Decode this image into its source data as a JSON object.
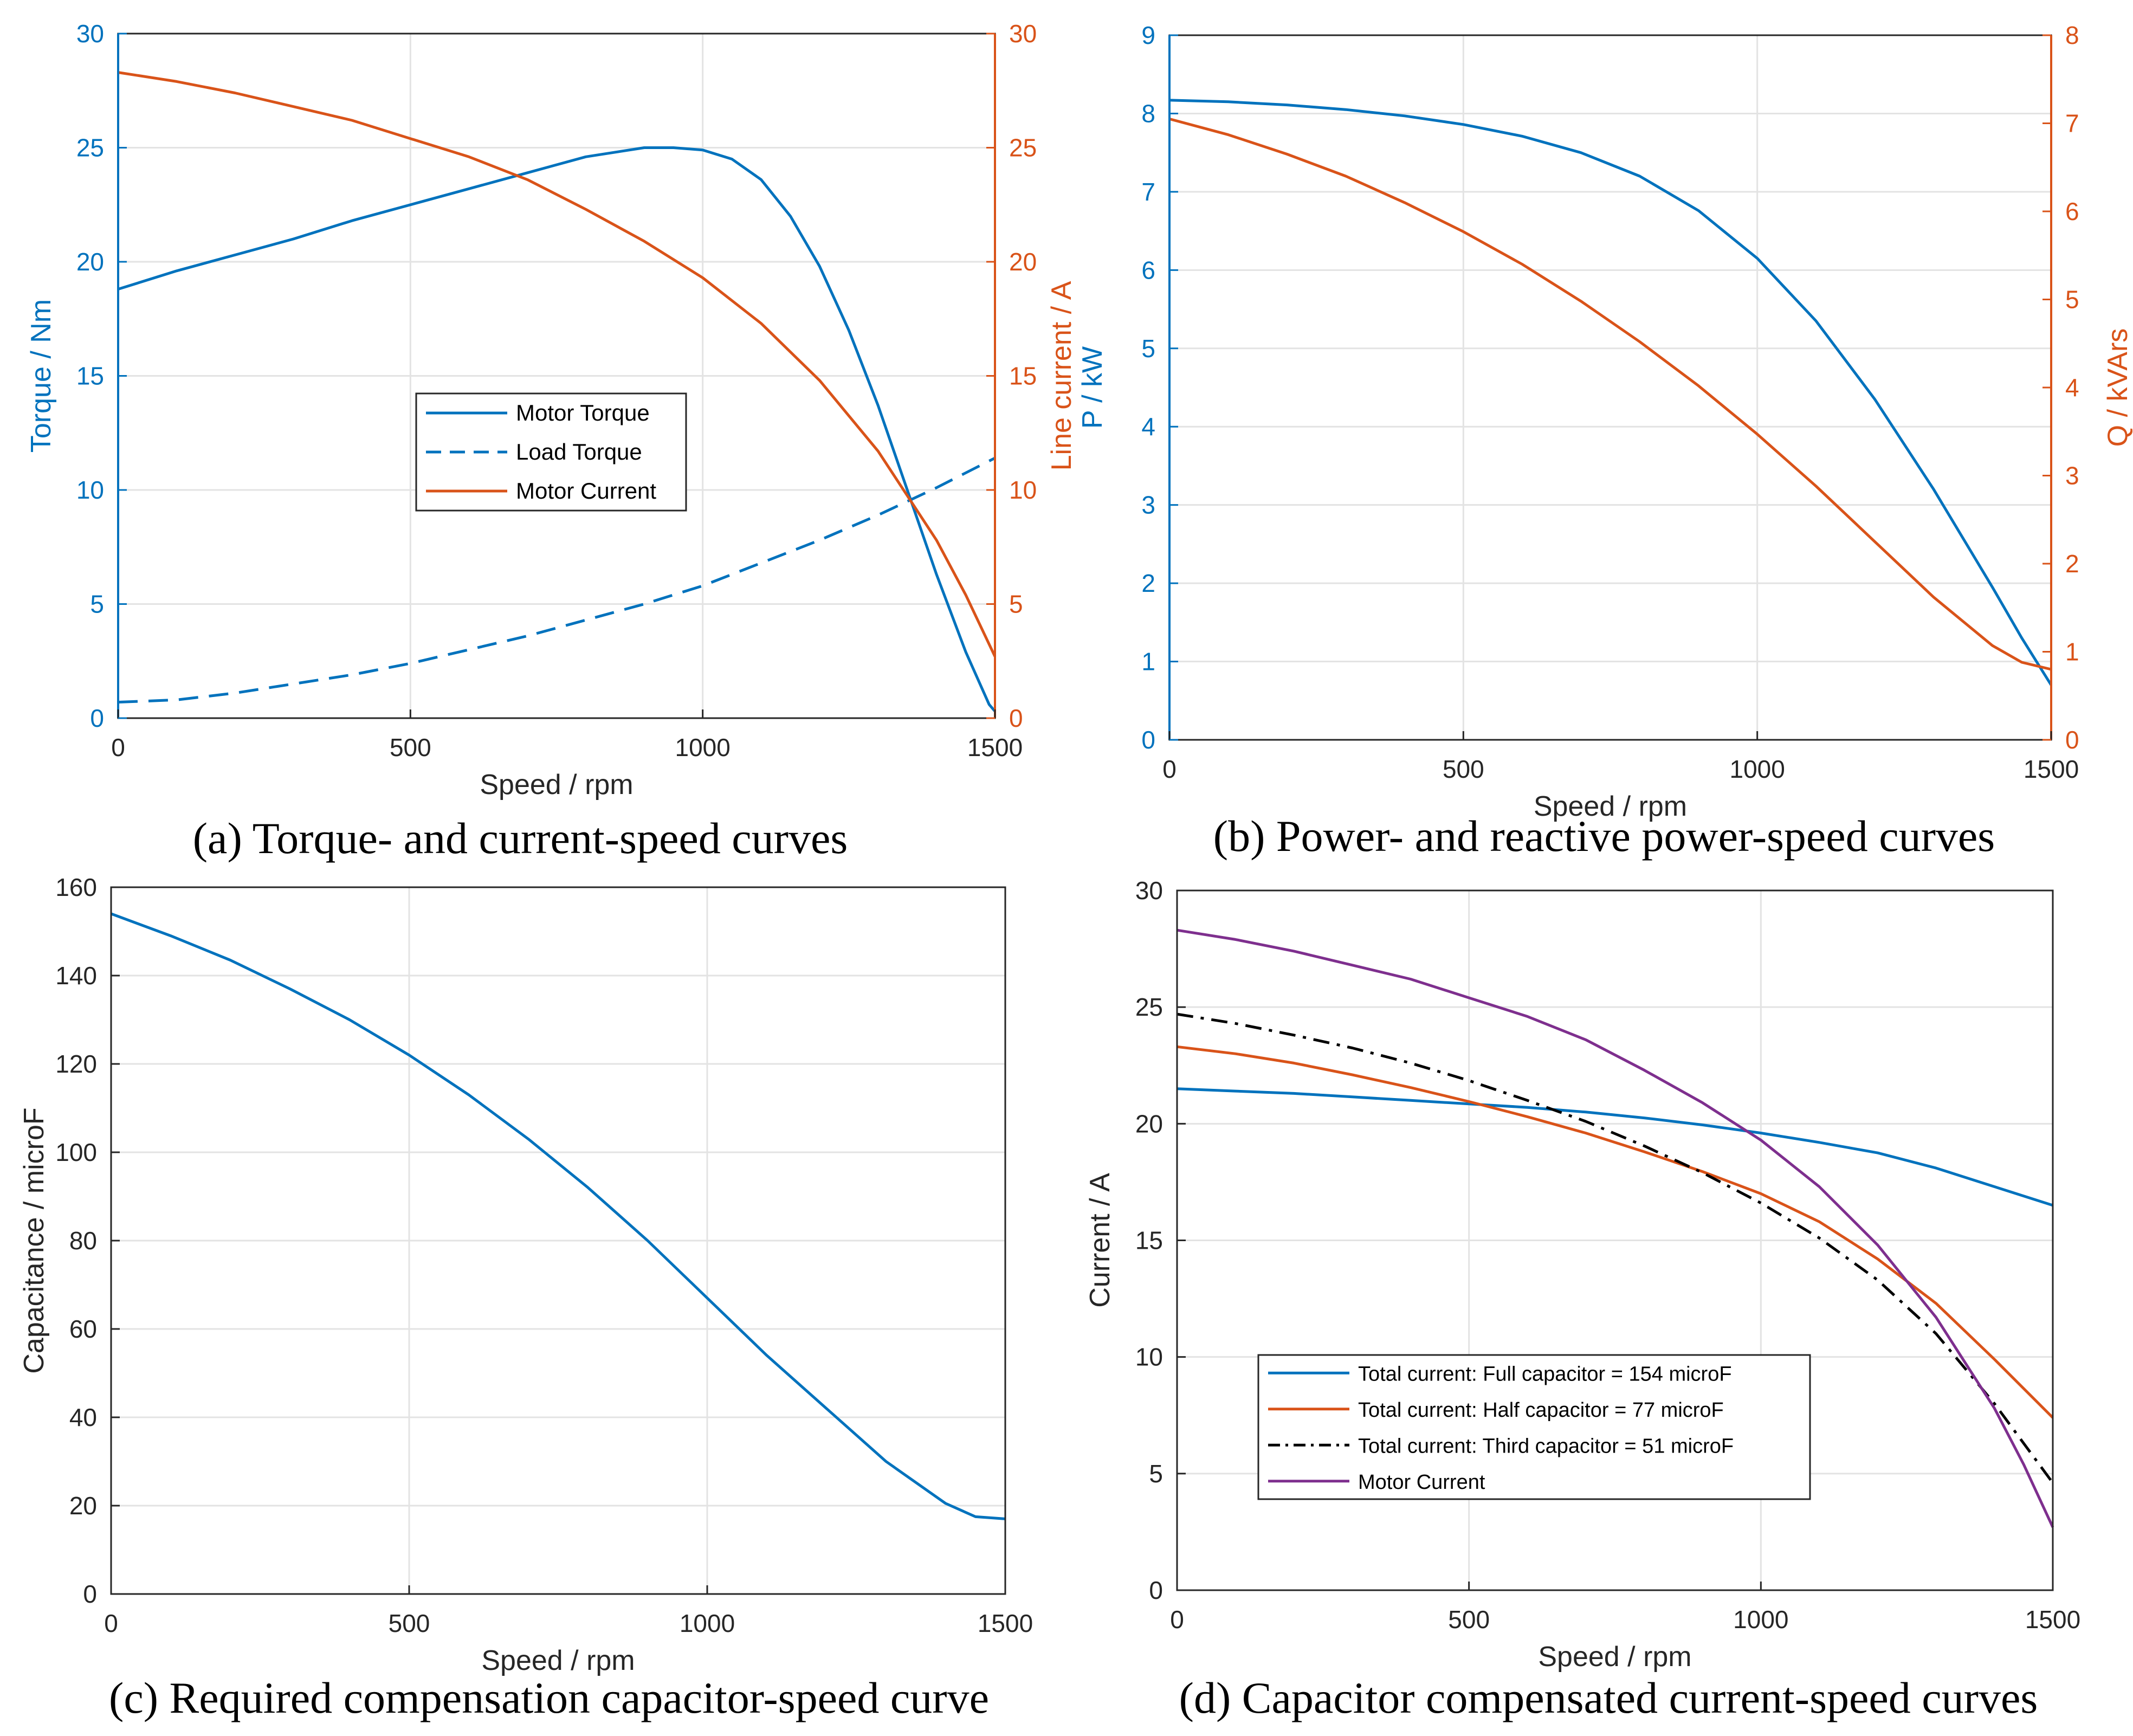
{
  "chart_data": [
    {
      "id": "a",
      "type": "line",
      "caption": "(a) Torque- and current-speed curves",
      "xlabel": "Speed / rpm",
      "xlim": [
        0,
        1500
      ],
      "xticks": [
        0,
        500,
        1000,
        1500
      ],
      "ylabel_left": "Torque / Nm",
      "ylim_left": [
        0,
        30
      ],
      "yticks_left": [
        0,
        5,
        10,
        15,
        20,
        25,
        30
      ],
      "ylabel_right": "Line current / A",
      "ylim_right": [
        0,
        30
      ],
      "yticks_right": [
        0,
        5,
        10,
        15,
        20,
        25,
        30
      ],
      "grid": true,
      "legend_position": "center",
      "series": [
        {
          "name": "Motor Torque",
          "axis": "left",
          "color": "#0072bd",
          "style": "solid",
          "x": [
            0,
            100,
            200,
            300,
            400,
            500,
            600,
            700,
            800,
            900,
            950,
            1000,
            1050,
            1100,
            1150,
            1200,
            1250,
            1300,
            1350,
            1400,
            1450,
            1490,
            1500
          ],
          "y": [
            18.8,
            19.6,
            20.3,
            21.0,
            21.8,
            22.5,
            23.2,
            23.9,
            24.6,
            25.0,
            25.0,
            24.9,
            24.5,
            23.6,
            22.0,
            19.8,
            17.0,
            13.7,
            10.0,
            6.3,
            2.9,
            0.6,
            0.3
          ]
        },
        {
          "name": "Load Torque",
          "axis": "left",
          "color": "#0072bd",
          "style": "dashed",
          "x": [
            0,
            100,
            200,
            300,
            400,
            500,
            600,
            700,
            800,
            900,
            1000,
            1100,
            1200,
            1300,
            1400,
            1500
          ],
          "y": [
            0.7,
            0.8,
            1.1,
            1.5,
            1.9,
            2.4,
            3.0,
            3.6,
            4.3,
            5.0,
            5.8,
            6.8,
            7.8,
            8.9,
            10.1,
            11.4
          ]
        },
        {
          "name": "Motor Current",
          "axis": "right",
          "color": "#d95319",
          "style": "solid",
          "x": [
            0,
            100,
            200,
            300,
            400,
            500,
            600,
            700,
            800,
            900,
            1000,
            1100,
            1200,
            1300,
            1400,
            1450,
            1500
          ],
          "y": [
            28.3,
            27.9,
            27.4,
            26.8,
            26.2,
            25.4,
            24.6,
            23.6,
            22.3,
            20.9,
            19.3,
            17.3,
            14.8,
            11.7,
            7.8,
            5.4,
            2.7
          ]
        }
      ]
    },
    {
      "id": "b",
      "type": "line",
      "caption": "(b) Power- and reactive power-speed curves",
      "xlabel": "Speed / rpm",
      "xlim": [
        0,
        1500
      ],
      "xticks": [
        0,
        500,
        1000,
        1500
      ],
      "ylabel_left": "P / kW",
      "ylim_left": [
        0,
        9
      ],
      "yticks_left": [
        0,
        1,
        2,
        3,
        4,
        5,
        6,
        7,
        8,
        9
      ],
      "ylabel_right": "Q / kVArs",
      "ylim_right": [
        0,
        8
      ],
      "yticks_right": [
        0,
        1,
        2,
        3,
        4,
        5,
        6,
        7,
        8
      ],
      "grid": true,
      "series": [
        {
          "name": "P",
          "axis": "left",
          "color": "#0072bd",
          "style": "solid",
          "x": [
            0,
            100,
            200,
            300,
            400,
            500,
            600,
            700,
            800,
            900,
            1000,
            1100,
            1200,
            1300,
            1400,
            1450,
            1500
          ],
          "y": [
            8.17,
            8.15,
            8.11,
            8.05,
            7.97,
            7.86,
            7.71,
            7.5,
            7.2,
            6.76,
            6.15,
            5.35,
            4.35,
            3.2,
            1.95,
            1.3,
            0.7
          ]
        },
        {
          "name": "Q",
          "axis": "right",
          "color": "#d95319",
          "style": "solid",
          "x": [
            0,
            100,
            200,
            300,
            400,
            500,
            600,
            700,
            800,
            900,
            1000,
            1100,
            1200,
            1300,
            1400,
            1450,
            1500
          ],
          "y": [
            7.05,
            6.87,
            6.65,
            6.4,
            6.1,
            5.77,
            5.4,
            4.98,
            4.52,
            4.02,
            3.47,
            2.88,
            2.25,
            1.62,
            1.07,
            0.88,
            0.8
          ]
        }
      ]
    },
    {
      "id": "c",
      "type": "line",
      "caption": "(c) Required compensation capacitor-speed curve",
      "xlabel": "Speed / rpm",
      "xlim": [
        0,
        1500
      ],
      "xticks": [
        0,
        500,
        1000,
        1500
      ],
      "ylabel_left": "Capacitance / microF",
      "ylim_left": [
        0,
        160
      ],
      "yticks_left": [
        0,
        20,
        40,
        60,
        80,
        100,
        120,
        140,
        160
      ],
      "grid": true,
      "series": [
        {
          "name": "Capacitance",
          "axis": "left",
          "color": "#0072bd",
          "style": "solid",
          "x": [
            0,
            100,
            200,
            300,
            400,
            500,
            600,
            700,
            800,
            900,
            1000,
            1100,
            1200,
            1300,
            1400,
            1450,
            1500
          ],
          "y": [
            154,
            149,
            143.5,
            137,
            130,
            122,
            113,
            103,
            92,
            80,
            67,
            54,
            42,
            30,
            20.5,
            17.5,
            17
          ]
        }
      ]
    },
    {
      "id": "d",
      "type": "line",
      "caption": "(d) Capacitor compensated current-speed curves",
      "xlabel": "Speed / rpm",
      "xlim": [
        0,
        1500
      ],
      "xticks": [
        0,
        500,
        1000,
        1500
      ],
      "ylabel_left": "Current / A",
      "ylim_left": [
        0,
        30
      ],
      "yticks_left": [
        0,
        5,
        10,
        15,
        20,
        25,
        30
      ],
      "grid": true,
      "legend_position": "bottom-left",
      "series": [
        {
          "name": "Total current: Full capacitor = 154 microF",
          "axis": "left",
          "color": "#0072bd",
          "style": "solid",
          "x": [
            0,
            100,
            200,
            300,
            400,
            500,
            600,
            700,
            800,
            900,
            1000,
            1100,
            1200,
            1300,
            1400,
            1500
          ],
          "y": [
            21.5,
            21.4,
            21.3,
            21.15,
            21.0,
            20.85,
            20.7,
            20.5,
            20.25,
            19.95,
            19.6,
            19.2,
            18.75,
            18.1,
            17.3,
            16.5
          ]
        },
        {
          "name": "Total current: Half capacitor = 77 microF",
          "axis": "left",
          "color": "#d95319",
          "style": "solid",
          "x": [
            0,
            100,
            200,
            300,
            400,
            500,
            600,
            700,
            800,
            900,
            1000,
            1100,
            1200,
            1300,
            1400,
            1500
          ],
          "y": [
            23.3,
            23.0,
            22.6,
            22.1,
            21.55,
            20.95,
            20.3,
            19.6,
            18.8,
            17.95,
            17.0,
            15.8,
            14.2,
            12.3,
            9.9,
            7.4
          ]
        },
        {
          "name": "Total current: Third capacitor = 51 microF",
          "axis": "left",
          "color": "#000000",
          "style": "dashdot",
          "x": [
            0,
            100,
            200,
            300,
            400,
            500,
            600,
            700,
            800,
            900,
            1000,
            1100,
            1200,
            1300,
            1400,
            1500
          ],
          "y": [
            24.7,
            24.3,
            23.8,
            23.25,
            22.6,
            21.85,
            21.0,
            20.1,
            19.05,
            17.9,
            16.6,
            15.1,
            13.3,
            11.0,
            8.0,
            4.6
          ]
        },
        {
          "name": "Motor Current",
          "axis": "left",
          "color": "#7e2f8e",
          "style": "solid",
          "x": [
            0,
            100,
            200,
            300,
            400,
            500,
            600,
            700,
            800,
            900,
            1000,
            1100,
            1200,
            1300,
            1400,
            1450,
            1500
          ],
          "y": [
            28.3,
            27.9,
            27.4,
            26.8,
            26.2,
            25.4,
            24.6,
            23.6,
            22.3,
            20.9,
            19.3,
            17.3,
            14.8,
            11.7,
            7.8,
            5.4,
            2.7
          ]
        }
      ]
    }
  ]
}
